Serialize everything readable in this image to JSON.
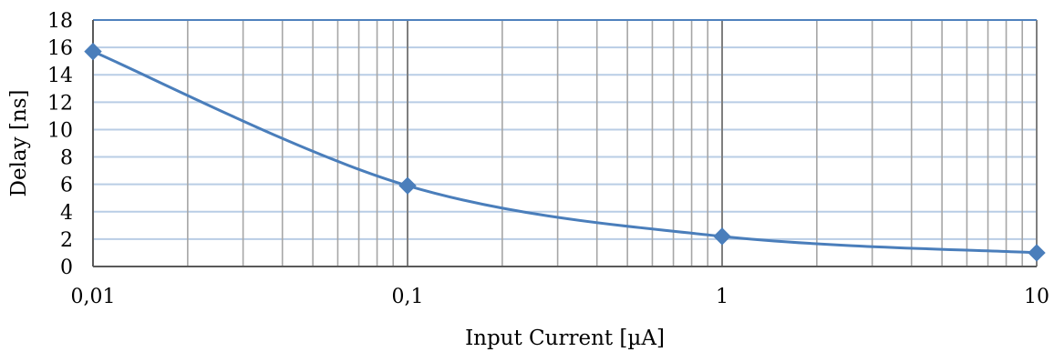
{
  "chart_data": {
    "type": "line",
    "xlabel": "Input Current [µA]",
    "ylabel": "Delay [ns]",
    "xscale": "log",
    "xlim": [
      0.01,
      10
    ],
    "ylim": [
      0,
      18
    ],
    "x_tick_labels": [
      "0,01",
      "0,1",
      "1",
      "10"
    ],
    "y_tick_labels": [
      "0",
      "2",
      "4",
      "6",
      "8",
      "10",
      "12",
      "14",
      "16",
      "18"
    ],
    "grid": true,
    "legend": "none",
    "series": [
      {
        "x": [
          0.01,
          0.1,
          1,
          10
        ],
        "y": [
          15.7,
          5.9,
          2.2,
          1.0
        ],
        "marker": "diamond",
        "smooth": true
      }
    ],
    "colors": {
      "series": "#4A7EBB",
      "major_grid_x": "#7F7F7F",
      "minor_grid_x": "#A6A6A6",
      "grid_y": "#B9CDE5",
      "frame": "#4F81BD",
      "axis": "#595959"
    }
  }
}
